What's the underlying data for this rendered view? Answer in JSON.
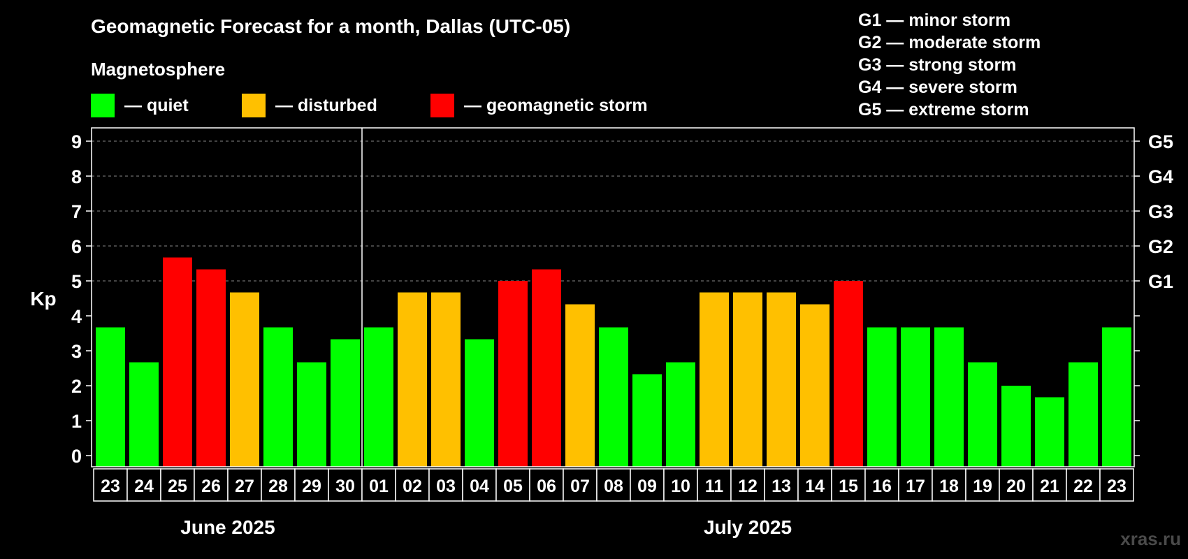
{
  "header": {
    "title": "Geomagnetic Forecast for a month, Dallas (UTC-05)",
    "magnetosphere_label": "Magnetosphere"
  },
  "legend": [
    {
      "label": "— quiet",
      "color": "#00ff00"
    },
    {
      "label": "— disturbed",
      "color": "#ffc000"
    },
    {
      "label": "— geomagnetic storm",
      "color": "#ff0000"
    }
  ],
  "g_legend": [
    "G1 — minor storm",
    "G2 — moderate storm",
    "G3 — strong storm",
    "G4 — severe storm",
    "G5 — extreme storm"
  ],
  "watermark": "xras.ru",
  "chart_data": {
    "type": "bar",
    "ylabel": "Kp",
    "ylim": [
      0,
      9
    ],
    "yticks": [
      "0",
      "1",
      "2",
      "3",
      "4",
      "5",
      "6",
      "7",
      "8",
      "9"
    ],
    "right_ticks": [
      {
        "kp": 5,
        "label": "G1"
      },
      {
        "kp": 6,
        "label": "G2"
      },
      {
        "kp": 7,
        "label": "G3"
      },
      {
        "kp": 8,
        "label": "G4"
      },
      {
        "kp": 9,
        "label": "G5"
      }
    ],
    "months": [
      {
        "label": "June 2025",
        "start": 0,
        "count": 8
      },
      {
        "label": "July 2025",
        "start": 8,
        "count": 23
      }
    ],
    "categories": [
      "23",
      "24",
      "25",
      "26",
      "27",
      "28",
      "29",
      "30",
      "01",
      "02",
      "03",
      "04",
      "05",
      "06",
      "07",
      "08",
      "09",
      "10",
      "11",
      "12",
      "13",
      "14",
      "15",
      "16",
      "17",
      "18",
      "19",
      "20",
      "21",
      "22",
      "23"
    ],
    "values": [
      3.67,
      2.67,
      5.67,
      5.33,
      4.67,
      3.67,
      2.67,
      3.33,
      3.67,
      4.67,
      4.67,
      3.33,
      5.0,
      5.33,
      4.33,
      3.67,
      2.33,
      2.67,
      4.67,
      4.67,
      4.67,
      4.33,
      5.0,
      3.67,
      3.67,
      3.67,
      2.67,
      2.0,
      1.67,
      2.67,
      3.67
    ],
    "levels": [
      "quiet",
      "quiet",
      "storm",
      "storm",
      "disturbed",
      "quiet",
      "quiet",
      "quiet",
      "quiet",
      "disturbed",
      "disturbed",
      "quiet",
      "storm",
      "storm",
      "disturbed",
      "quiet",
      "quiet",
      "quiet",
      "disturbed",
      "disturbed",
      "disturbed",
      "disturbed",
      "storm",
      "quiet",
      "quiet",
      "quiet",
      "quiet",
      "quiet",
      "quiet",
      "quiet",
      "quiet"
    ],
    "level_colors": {
      "quiet": "#00ff00",
      "disturbed": "#ffc000",
      "storm": "#ff0000"
    }
  }
}
